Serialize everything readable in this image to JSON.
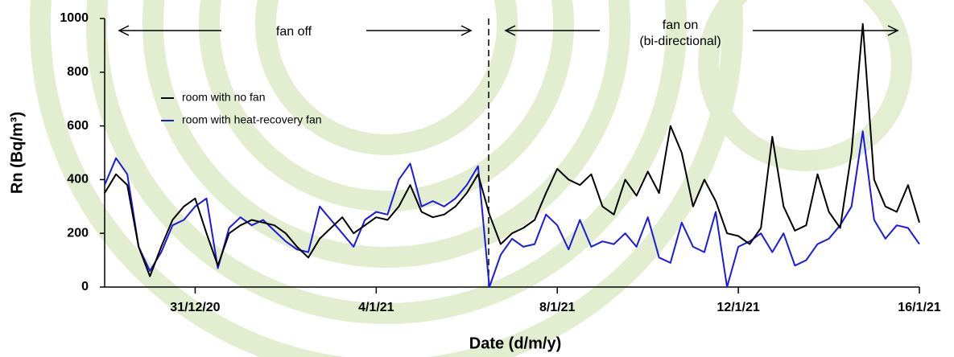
{
  "chart_data": {
    "type": "line",
    "x_label": "Date (d/m/y)",
    "y_label": "Rn (Bq/m³)",
    "annotations": [
      "fan off",
      "fan on",
      "(bi-directional)"
    ],
    "x": [
      0,
      0.25,
      0.5,
      0.75,
      1,
      1.25,
      1.5,
      1.75,
      2,
      2.25,
      2.5,
      2.75,
      3,
      3.25,
      3.5,
      3.75,
      4,
      4.25,
      4.5,
      4.75,
      5,
      5.25,
      5.5,
      5.75,
      6,
      6.25,
      6.5,
      6.75,
      7,
      7.25,
      7.5,
      7.75,
      8,
      8.25,
      8.5,
      8.75,
      9,
      9.25,
      9.5,
      9.75,
      10,
      10.25,
      10.5,
      10.75,
      11,
      11.25,
      11.5,
      11.75,
      12,
      12.25,
      12.5,
      12.75,
      13,
      13.25,
      13.5,
      13.75,
      14,
      14.25,
      14.5,
      14.75,
      15,
      15.25,
      15.5,
      15.75,
      16,
      16.25,
      16.5,
      16.75,
      17,
      17.25,
      17.5,
      17.75,
      18
    ],
    "series": [
      {
        "name": "room with no fan",
        "color": "#000000",
        "values": [
          350,
          420,
          380,
          150,
          40,
          150,
          250,
          300,
          330,
          200,
          80,
          200,
          230,
          250,
          240,
          230,
          200,
          150,
          110,
          180,
          220,
          260,
          200,
          230,
          260,
          250,
          300,
          380,
          280,
          260,
          270,
          300,
          350,
          420,
          270,
          160,
          200,
          220,
          250,
          350,
          440,
          400,
          380,
          420,
          300,
          270,
          400,
          340,
          430,
          350,
          600,
          500,
          300,
          400,
          320,
          200,
          190,
          160,
          220,
          560,
          300,
          210,
          230,
          420,
          280,
          220,
          500,
          980,
          400,
          300,
          280,
          380,
          240
        ]
      },
      {
        "name": "room with heat-recovery fan",
        "color": "#1a1ae6",
        "values": [
          380,
          480,
          420,
          150,
          60,
          130,
          230,
          250,
          300,
          330,
          70,
          220,
          260,
          230,
          250,
          210,
          170,
          140,
          130,
          300,
          250,
          200,
          150,
          250,
          280,
          270,
          400,
          460,
          300,
          320,
          300,
          330,
          380,
          450,
          0,
          120,
          180,
          150,
          160,
          270,
          230,
          140,
          250,
          150,
          170,
          160,
          200,
          150,
          260,
          110,
          90,
          240,
          150,
          130,
          280,
          0,
          150,
          170,
          200,
          130,
          200,
          80,
          100,
          160,
          180,
          230,
          300,
          580,
          250,
          180,
          230,
          220,
          160
        ]
      }
    ],
    "xlim": [
      0,
      18
    ],
    "xticks": [
      {
        "value": 2,
        "label": "31/12/20"
      },
      {
        "value": 6,
        "label": "4/1/21"
      },
      {
        "value": 10,
        "label": "8/1/21"
      },
      {
        "value": 14,
        "label": "12/1/21"
      },
      {
        "value": 18,
        "label": "16/1/21"
      }
    ],
    "ylim": [
      0,
      1000
    ],
    "yticks": [
      0,
      200,
      400,
      600,
      800,
      1000
    ],
    "grid": false,
    "legend": "upper left"
  }
}
